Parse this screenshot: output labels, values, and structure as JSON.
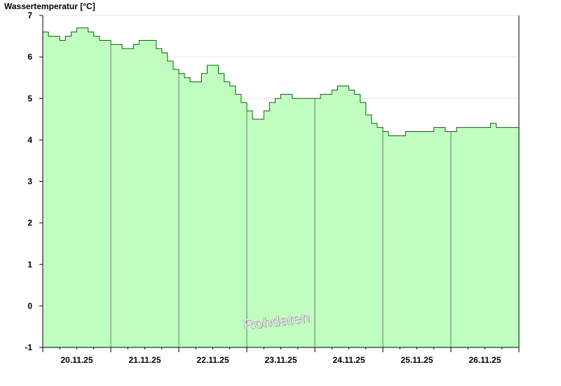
{
  "chart_data": {
    "type": "area",
    "title": "Wassertemperatur [°C]",
    "xlabel": "",
    "ylabel": "",
    "ylim": [
      -1,
      7
    ],
    "yticks": [
      -1,
      0,
      1,
      2,
      3,
      4,
      5,
      6,
      7
    ],
    "grid": "horizontal",
    "legend": "none",
    "x_start": "20.11.25 00:00",
    "x_end": "27.11.25 00:00",
    "day_labels": [
      "20.11.25",
      "21.11.25",
      "22.11.25",
      "23.11.25",
      "24.11.25",
      "25.11.25",
      "26.11.25"
    ],
    "day_boundaries": [
      "21.11.25 00:00",
      "22.11.25 00:00",
      "23.11.25 00:00",
      "24.11.25 00:00",
      "25.11.25 00:00",
      "26.11.25 00:00"
    ],
    "series": [
      {
        "color": "#006600",
        "fill": "#c0ffc0",
        "x": [
          "20.11.25 00:00",
          "20.11.25 02:00",
          "20.11.25 04:00",
          "20.11.25 06:00",
          "20.11.25 08:00",
          "20.11.25 10:00",
          "20.11.25 12:00",
          "20.11.25 14:00",
          "20.11.25 16:00",
          "20.11.25 18:00",
          "20.11.25 20:00",
          "20.11.25 22:00",
          "21.11.25 00:00",
          "21.11.25 02:00",
          "21.11.25 04:00",
          "21.11.25 06:00",
          "21.11.25 08:00",
          "21.11.25 10:00",
          "21.11.25 12:00",
          "21.11.25 14:00",
          "21.11.25 16:00",
          "21.11.25 18:00",
          "21.11.25 20:00",
          "21.11.25 22:00",
          "22.11.25 00:00",
          "22.11.25 02:00",
          "22.11.25 04:00",
          "22.11.25 06:00",
          "22.11.25 08:00",
          "22.11.25 10:00",
          "22.11.25 12:00",
          "22.11.25 14:00",
          "22.11.25 16:00",
          "22.11.25 18:00",
          "22.11.25 20:00",
          "22.11.25 22:00",
          "23.11.25 00:00",
          "23.11.25 02:00",
          "23.11.25 04:00",
          "23.11.25 06:00",
          "23.11.25 08:00",
          "23.11.25 10:00",
          "23.11.25 12:00",
          "23.11.25 14:00",
          "23.11.25 16:00",
          "23.11.25 18:00",
          "23.11.25 20:00",
          "23.11.25 22:00",
          "24.11.25 00:00",
          "24.11.25 02:00",
          "24.11.25 04:00",
          "24.11.25 06:00",
          "24.11.25 08:00",
          "24.11.25 10:00",
          "24.11.25 12:00",
          "24.11.25 14:00",
          "24.11.25 16:00",
          "24.11.25 18:00",
          "24.11.25 20:00",
          "24.11.25 22:00",
          "25.11.25 00:00",
          "25.11.25 02:00",
          "25.11.25 04:00",
          "25.11.25 06:00",
          "25.11.25 08:00",
          "25.11.25 10:00",
          "25.11.25 12:00",
          "25.11.25 14:00",
          "25.11.25 16:00",
          "25.11.25 18:00",
          "25.11.25 20:00",
          "25.11.25 22:00",
          "26.11.25 00:00",
          "26.11.25 02:00",
          "26.11.25 04:00",
          "26.11.25 06:00",
          "26.11.25 08:00",
          "26.11.25 10:00",
          "26.11.25 12:00",
          "26.11.25 14:00",
          "26.11.25 16:00",
          "26.11.25 18:00",
          "26.11.25 20:00",
          "26.11.25 22:00",
          "27.11.25 00:00"
        ],
        "values": [
          6.6,
          6.5,
          6.5,
          6.4,
          6.5,
          6.6,
          6.7,
          6.7,
          6.6,
          6.5,
          6.4,
          6.4,
          6.3,
          6.3,
          6.2,
          6.2,
          6.3,
          6.4,
          6.4,
          6.4,
          6.2,
          6.1,
          5.9,
          5.7,
          5.6,
          5.5,
          5.4,
          5.4,
          5.6,
          5.8,
          5.8,
          5.6,
          5.4,
          5.3,
          5.1,
          4.9,
          4.7,
          4.5,
          4.5,
          4.7,
          4.9,
          5.0,
          5.1,
          5.1,
          5.0,
          5.0,
          5.0,
          5.0,
          5.0,
          5.1,
          5.1,
          5.2,
          5.3,
          5.3,
          5.2,
          5.1,
          4.9,
          4.6,
          4.4,
          4.3,
          4.2,
          4.1,
          4.1,
          4.1,
          4.2,
          4.2,
          4.2,
          4.2,
          4.2,
          4.3,
          4.3,
          4.2,
          4.2,
          4.3,
          4.3,
          4.3,
          4.3,
          4.3,
          4.3,
          4.4,
          4.3,
          4.3,
          4.3,
          4.3,
          4.3
        ]
      }
    ],
    "annotation": "Rohdaten"
  }
}
